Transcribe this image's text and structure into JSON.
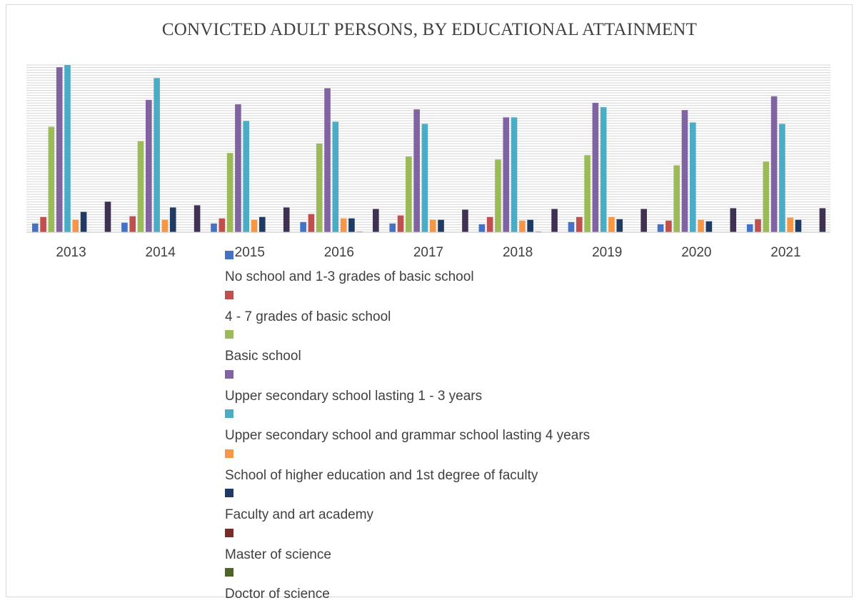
{
  "chart_data": {
    "type": "bar",
    "title": "CONVICTED ADULT PERSONS, BY EDUCATIONAL ATTAINMENT",
    "xlabel": "",
    "ylabel": "",
    "categories": [
      "2013",
      "2014",
      "2015",
      "2016",
      "2017",
      "2018",
      "2019",
      "2020",
      "2021"
    ],
    "grid": true,
    "legend_position": "bottom",
    "ylim": [
      0,
      2300
    ],
    "series": [
      {
        "name": "No school and 1-3 grades of basic school",
        "color": "#4472c4",
        "values": [
          120,
          130,
          120,
          140,
          120,
          110,
          140,
          110,
          110
        ]
      },
      {
        "name": "4 - 7 grades of basic school",
        "color": "#c0504d",
        "values": [
          210,
          220,
          190,
          250,
          230,
          210,
          210,
          160,
          180
        ]
      },
      {
        "name": "Basic school",
        "color": "#9bbb59",
        "values": [
          1450,
          1250,
          1090,
          1220,
          1040,
          1000,
          1060,
          920,
          970
        ]
      },
      {
        "name": "Upper secondary school lasting 1 - 3 years",
        "color": "#8064a2",
        "values": [
          2270,
          1820,
          1760,
          1980,
          1690,
          1580,
          1780,
          1680,
          1870
        ]
      },
      {
        "name": "Upper secondary school and grammar school lasting 4 years",
        "color": "#4bacc6",
        "values": [
          2300,
          2120,
          1530,
          1520,
          1490,
          1580,
          1720,
          1510,
          1490
        ]
      },
      {
        "name": "School of higher education and 1st degree of faculty",
        "color": "#f79646",
        "values": [
          170,
          170,
          170,
          190,
          170,
          160,
          210,
          170,
          200
        ]
      },
      {
        "name": "Faculty and art academy",
        "color": "#1f3b63",
        "values": [
          280,
          340,
          210,
          190,
          170,
          170,
          180,
          150,
          170
        ]
      },
      {
        "name": "Master of science",
        "color": "#772c2a",
        "values": [
          5,
          5,
          5,
          8,
          5,
          8,
          5,
          5,
          5
        ]
      },
      {
        "name": "Doctor of science",
        "color": "#4f6228",
        "values": [
          3,
          3,
          3,
          3,
          3,
          3,
          3,
          3,
          3
        ]
      },
      {
        "name": "",
        "color": "#3f3151",
        "values": [
          420,
          370,
          340,
          320,
          310,
          320,
          320,
          330,
          330
        ]
      }
    ]
  }
}
